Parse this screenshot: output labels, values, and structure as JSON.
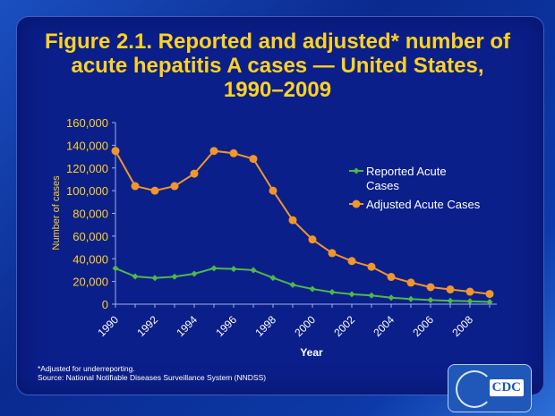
{
  "title": [
    "Figure 2.1. Reported and adjusted* number of",
    "acute hepatitis A cases — United States,",
    "1990–2009"
  ],
  "footnote": "*Adjusted for underreporting.",
  "source": "Source: National Notifiable Diseases Surveillance System (NNDSS)",
  "logo_text": "CDC",
  "chart_data": {
    "type": "line",
    "xlabel": "Year",
    "ylabel": "Number of cases",
    "x": [
      1990,
      1991,
      1992,
      1993,
      1994,
      1995,
      1996,
      1997,
      1998,
      1999,
      2000,
      2001,
      2002,
      2003,
      2004,
      2005,
      2006,
      2007,
      2008,
      2009
    ],
    "xticks": [
      "1990",
      "1992",
      "1994",
      "1996",
      "1998",
      "2000",
      "2002",
      "2004",
      "2006",
      "2008"
    ],
    "ylim": [
      0,
      160000
    ],
    "yticks": [
      "0",
      "20,000",
      "40,000",
      "60,000",
      "80,000",
      "100,000",
      "120,000",
      "140,000",
      "160,000"
    ],
    "legend": "right",
    "series": [
      {
        "name": "Reported Acute Cases",
        "color": "#4fb848",
        "marker": "diamond",
        "values": [
          31600,
          24400,
          23100,
          24200,
          26800,
          31600,
          31000,
          30000,
          23200,
          17000,
          13400,
          10600,
          8800,
          7700,
          5700,
          4500,
          3600,
          3000,
          2600,
          2000
        ]
      },
      {
        "name": "Adjusted Acute Cases",
        "color": "#f0962a",
        "marker": "circle",
        "values": [
          135000,
          104000,
          100000,
          104000,
          115000,
          135000,
          133000,
          128000,
          100000,
          74000,
          57000,
          45000,
          38000,
          33000,
          24000,
          19000,
          15000,
          13000,
          11000,
          9000
        ]
      }
    ]
  }
}
